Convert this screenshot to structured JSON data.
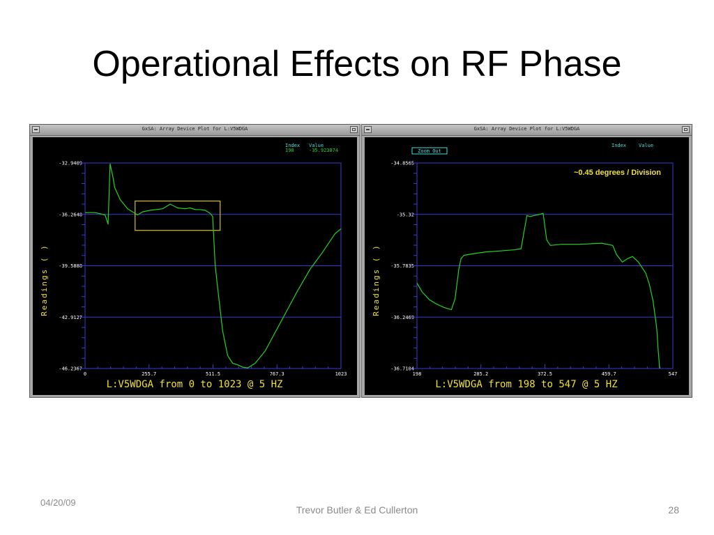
{
  "slide": {
    "title": "Operational Effects on RF Phase",
    "date": "04/20/09",
    "authors": "Trevor Butler & Ed Cullerton",
    "page": "28"
  },
  "colors": {
    "trace": "#22d522",
    "grid": "#3a3ad0",
    "label": "#f0e030",
    "header": "#40e0e0",
    "highlight": "#d8c020"
  },
  "left_window": {
    "title": "GxSA: Array Device Plot for L:V5WDGA",
    "header_index_label": "Index",
    "header_value_label": "Value",
    "header_index": "198",
    "header_value": "-35.923874",
    "y_axis_label": "Readings ( )",
    "caption": "L:V5WDGA from 0 to 1023 @ 5 HZ"
  },
  "right_window": {
    "title": "GxSA: Array Device Plot for L:V5WDGA",
    "header_index_label": "Index",
    "header_value_label": "Value",
    "zoom_button": "Zoom Out",
    "annotation": "~0.45 degrees / Division",
    "y_axis_label": "Readings ( )",
    "caption": "L:V5WDGA from 198 to 547 @ 5 HZ"
  },
  "chart_data": [
    {
      "type": "line",
      "xlim": [
        0,
        1023
      ],
      "ylim": [
        -46.2367,
        -32.9409
      ],
      "y_ticks": [
        "-32.9409",
        "-36.2648",
        "-39.5888",
        "-42.9127",
        "-46.2367"
      ],
      "x_ticks": [
        "0",
        "255.7",
        "511.5",
        "767.3",
        "1023"
      ],
      "series": [
        {
          "x": [
            0,
            40,
            80,
            92,
            100,
            112,
            118,
            140,
            170,
            210,
            230,
            260,
            310,
            340,
            370,
            400,
            420,
            440,
            460,
            480,
            500,
            510,
            514,
            520,
            530,
            550,
            570,
            590,
            610,
            630,
            650,
            680,
            700,
            720,
            740,
            760,
            800,
            850,
            900,
            950,
            1000,
            1023
          ],
          "y": [
            -36.15,
            -36.15,
            -36.3,
            -36.9,
            -33.0,
            -33.9,
            -34.5,
            -35.3,
            -35.9,
            -36.3,
            -36.1,
            -36.0,
            -35.9,
            -35.6,
            -35.85,
            -35.9,
            -35.85,
            -35.95,
            -35.95,
            -36.0,
            -36.2,
            -36.4,
            -37.6,
            -39.5,
            -41.0,
            -43.8,
            -45.4,
            -45.9,
            -46.0,
            -46.15,
            -46.2,
            -45.9,
            -45.5,
            -45.1,
            -44.5,
            -43.9,
            -42.7,
            -41.2,
            -39.8,
            -38.7,
            -37.5,
            -37.2
          ]
        }
      ],
      "highlight_box": {
        "x": [
          200,
          540
        ],
        "y": [
          -35.4,
          -37.3
        ]
      }
    },
    {
      "type": "line",
      "xlim": [
        198,
        547
      ],
      "ylim": [
        -36.7104,
        -34.8565
      ],
      "y_ticks": [
        "-34.8565",
        "-35.32",
        "-35.7835",
        "-36.2469",
        "-36.7104"
      ],
      "x_ticks": [
        "198",
        "285.2",
        "372.5",
        "459.7",
        "547"
      ],
      "series": [
        {
          "x": [
            198,
            205,
            215,
            225,
            235,
            245,
            250,
            255,
            258,
            262,
            270,
            290,
            310,
            330,
            340,
            345,
            348,
            352,
            358,
            365,
            370,
            375,
            380,
            395,
            420,
            450,
            465,
            470,
            478,
            485,
            492,
            500,
            510,
            515,
            520,
            525,
            527,
            529
          ],
          "y": [
            -35.94,
            -36.02,
            -36.09,
            -36.13,
            -36.16,
            -36.18,
            -36.08,
            -35.82,
            -35.72,
            -35.69,
            -35.68,
            -35.66,
            -35.65,
            -35.64,
            -35.63,
            -35.44,
            -35.33,
            -35.34,
            -35.33,
            -35.32,
            -35.31,
            -35.55,
            -35.6,
            -35.59,
            -35.59,
            -35.58,
            -35.6,
            -35.68,
            -35.75,
            -35.72,
            -35.7,
            -35.75,
            -35.85,
            -35.95,
            -36.1,
            -36.35,
            -36.55,
            -36.71
          ]
        }
      ]
    }
  ]
}
